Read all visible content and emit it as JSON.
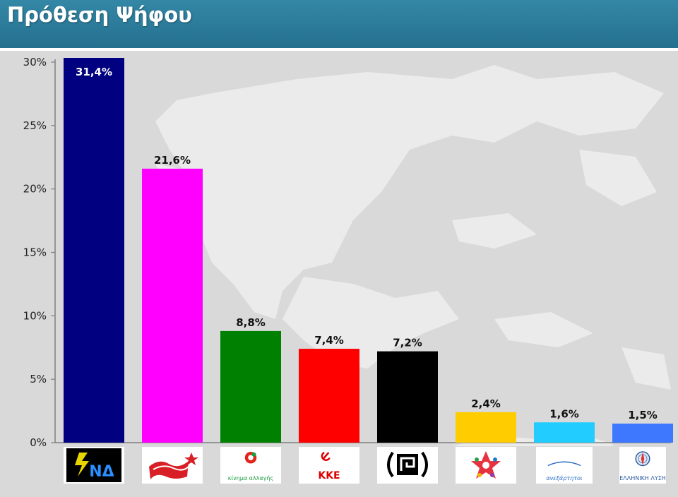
{
  "header": {
    "title": "Πρόθεση Ψήφου"
  },
  "colors": {
    "header": "#2b7c9b",
    "background": "#d9d9d9",
    "map": "#ebebeb"
  },
  "chart_data": {
    "type": "bar",
    "title": "Πρόθεση Ψήφου",
    "ylim": [
      0,
      30
    ],
    "yticks": [
      "0%",
      "5%",
      "10%",
      "15%",
      "20%",
      "25%",
      "30%"
    ],
    "grid": false,
    "values": [
      31.4,
      21.6,
      8.8,
      7.4,
      7.2,
      2.4,
      1.6,
      1.5
    ],
    "value_labels": [
      "31,4%",
      "21,6%",
      "8,8%",
      "7,4%",
      "7,2%",
      "2,4%",
      "1,6%",
      "1,5%"
    ],
    "colors": [
      "#000080",
      "#ff00ff",
      "#008000",
      "#ff0000",
      "#000000",
      "#ffcc00",
      "#22ccff",
      "#3d78ff"
    ]
  },
  "logos": [
    {
      "icon": "nd-logo",
      "label": "ΝΔ"
    },
    {
      "icon": "syriza-flag-logo",
      "label": ""
    },
    {
      "icon": "kinal-logo",
      "label": "κίνημα αλλαγής"
    },
    {
      "icon": "kke-logo",
      "label": "ΚΚΕ"
    },
    {
      "icon": "golden-dawn-logo",
      "label": ""
    },
    {
      "icon": "enosi-kentroon-star-logo",
      "label": ""
    },
    {
      "icon": "anel-logo",
      "label": "ανεξάρτητοι"
    },
    {
      "icon": "elliniki-lysi-logo",
      "label": "ΕΛΛΗΝΙΚΗ ΛΥΣΗ"
    }
  ]
}
